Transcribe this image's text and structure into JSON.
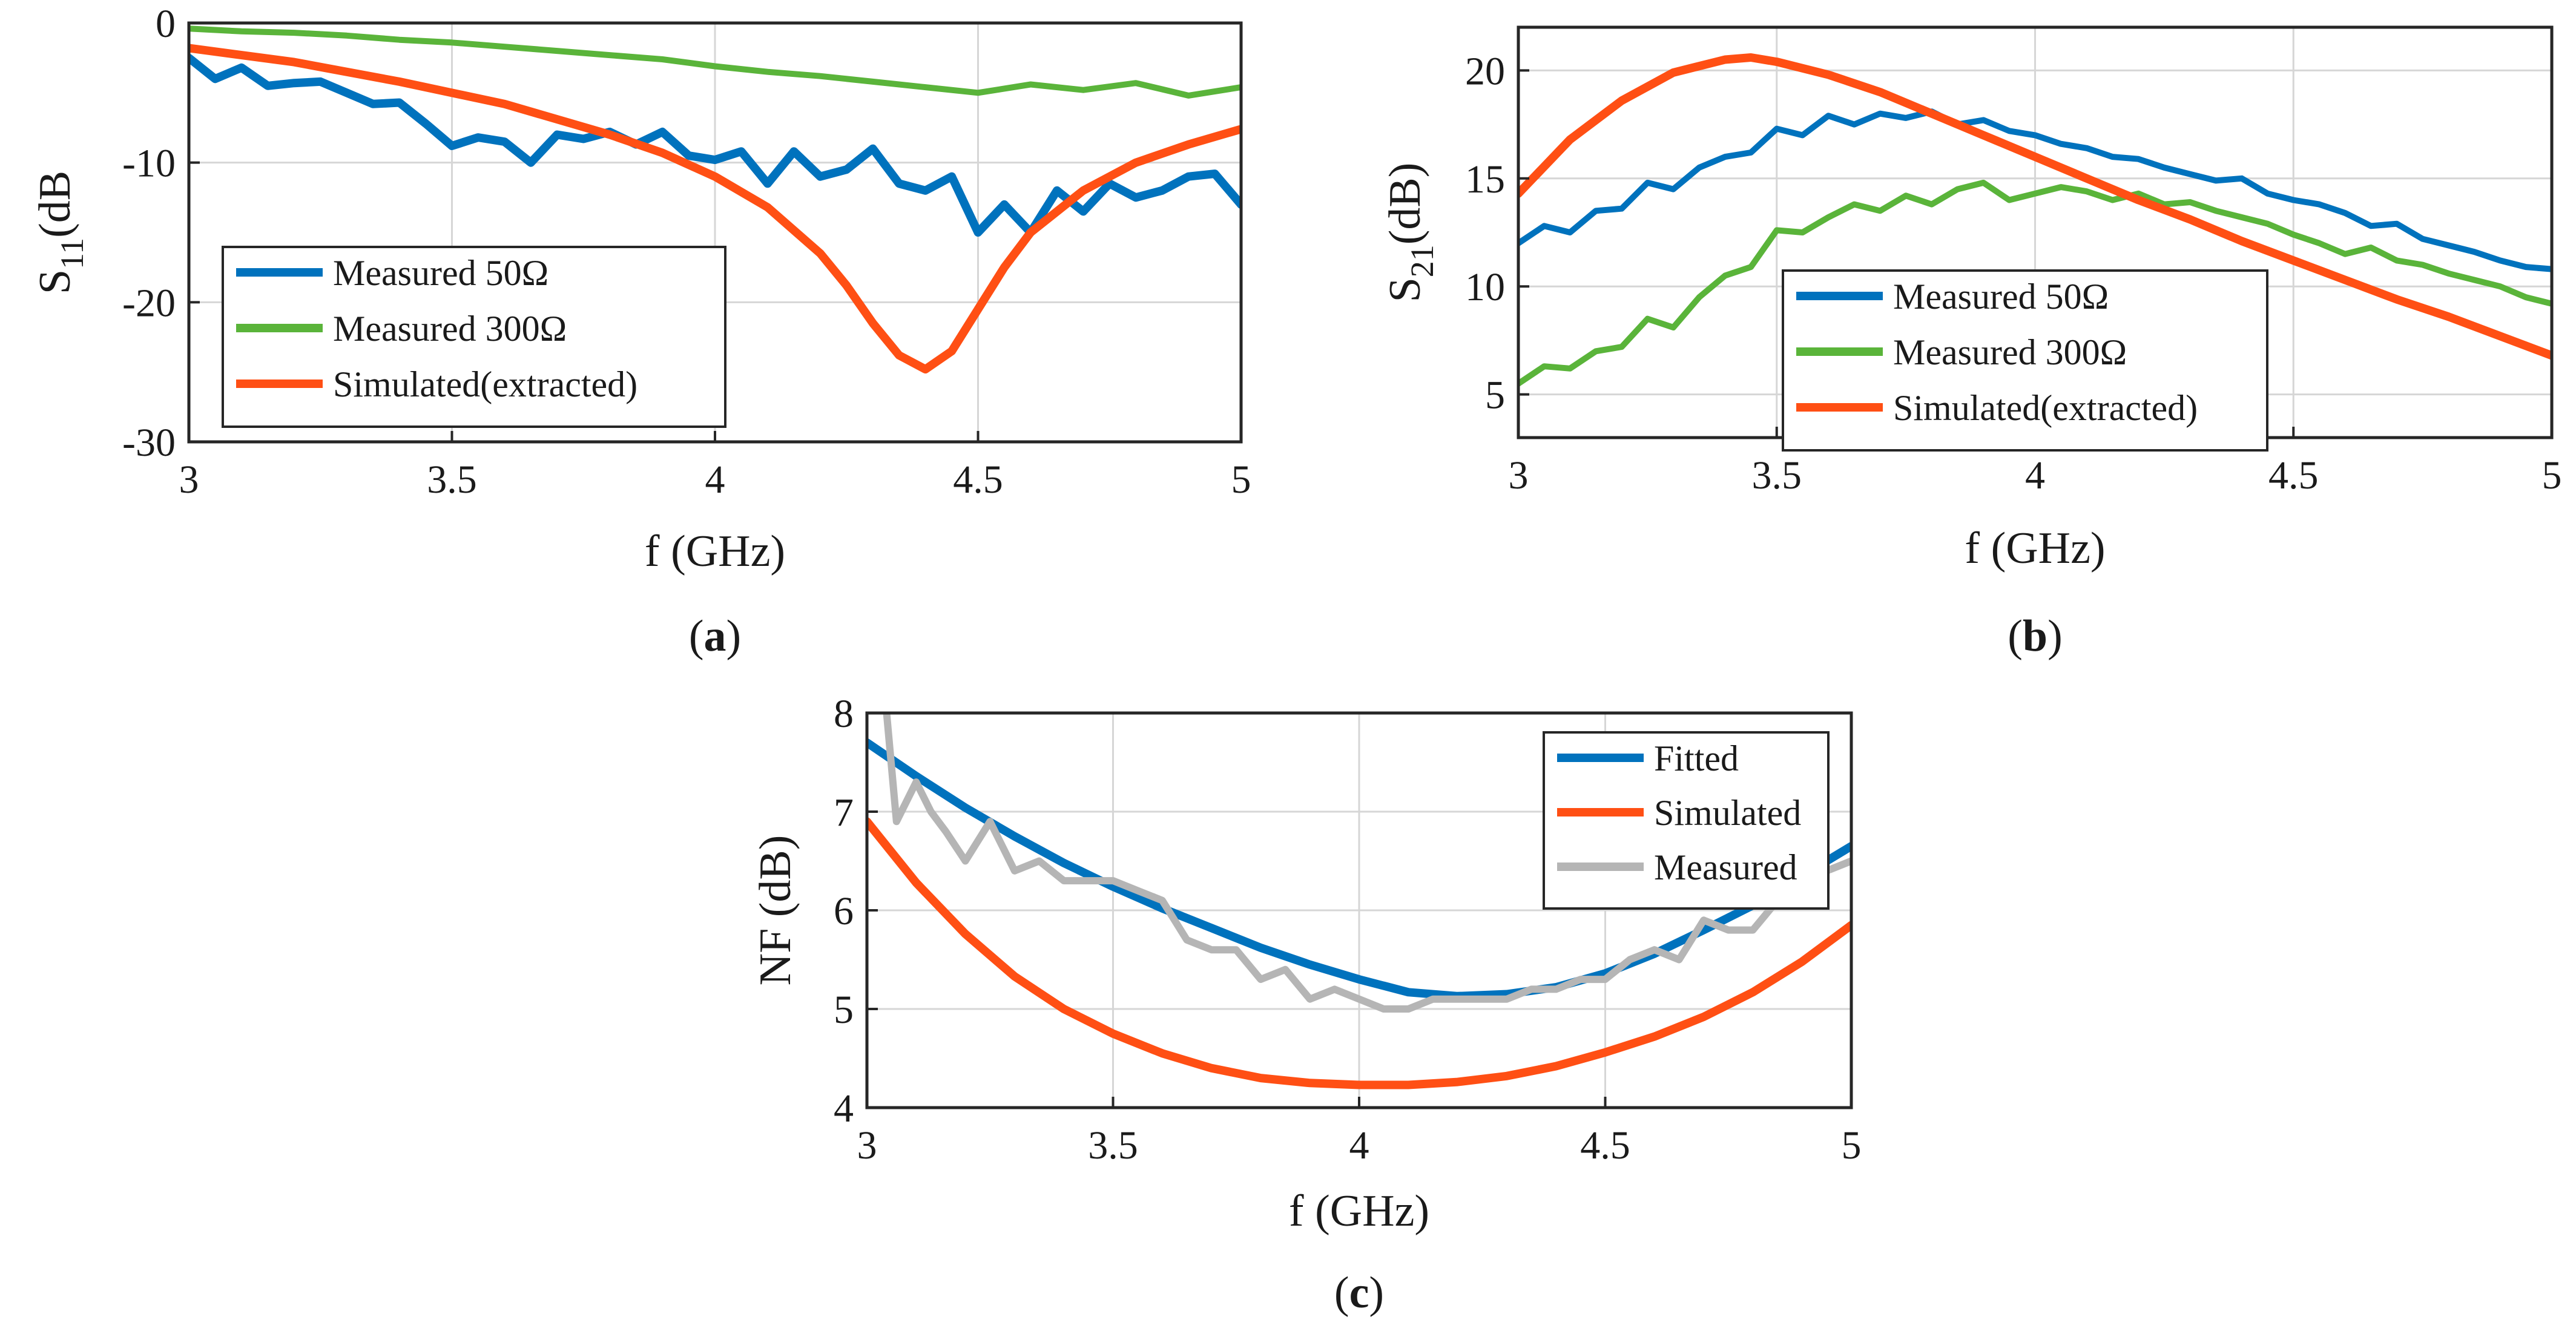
{
  "colors": {
    "measured50": "#0072BD",
    "measured300": "#5AB43A",
    "simulated": "#FF4F14",
    "fitted": "#0072BD",
    "measured": "#B5B5B5",
    "grid": "#d6d6d6"
  },
  "chart_data": [
    {
      "type": "line",
      "caption": {
        "open": "(",
        "letter": "a",
        "close": ")"
      },
      "xlabel": "f (GHz)",
      "ylabel": {
        "main": "S",
        "sub": "11",
        "rest": "(dB"
      },
      "xlim": [
        3,
        5
      ],
      "ylim": [
        -30,
        0
      ],
      "xticks": [
        3,
        3.5,
        4,
        4.5,
        5
      ],
      "xtick_labels": [
        "3",
        "3.5",
        "4",
        "4.5",
        "5"
      ],
      "yticks": [
        -30,
        -20,
        -10,
        0
      ],
      "ytick_labels": [
        "-30",
        "-20",
        "-10",
        "0"
      ],
      "grid": true,
      "legend_position": "bottom-left",
      "series": [
        {
          "name": "Measured 50Ω",
          "color": "#0072BD",
          "width": 14,
          "x": [
            3.0,
            3.05,
            3.1,
            3.15,
            3.2,
            3.25,
            3.3,
            3.35,
            3.4,
            3.45,
            3.5,
            3.55,
            3.6,
            3.65,
            3.7,
            3.75,
            3.8,
            3.85,
            3.9,
            3.95,
            4.0,
            4.05,
            4.1,
            4.15,
            4.2,
            4.25,
            4.3,
            4.35,
            4.4,
            4.45,
            4.5,
            4.55,
            4.6,
            4.65,
            4.7,
            4.75,
            4.8,
            4.85,
            4.9,
            4.95,
            5.0
          ],
          "y": [
            -2.5,
            -4.0,
            -3.2,
            -4.5,
            -4.3,
            -4.2,
            -5.0,
            -5.8,
            -5.7,
            -7.2,
            -8.8,
            -8.2,
            -8.5,
            -10.0,
            -8.0,
            -8.3,
            -7.8,
            -8.7,
            -7.8,
            -9.5,
            -9.8,
            -9.2,
            -11.5,
            -9.2,
            -11.0,
            -10.5,
            -9.0,
            -11.5,
            -12.0,
            -11.0,
            -15.0,
            -13.0,
            -15.0,
            -12.0,
            -13.5,
            -11.5,
            -12.5,
            -12.0,
            -11.0,
            -10.8,
            -13.0
          ]
        },
        {
          "name": "Measured 300Ω",
          "color": "#5AB43A",
          "width": 10,
          "x": [
            3.0,
            3.1,
            3.2,
            3.3,
            3.4,
            3.5,
            3.6,
            3.7,
            3.8,
            3.9,
            4.0,
            4.1,
            4.2,
            4.3,
            4.4,
            4.5,
            4.6,
            4.7,
            4.8,
            4.9,
            5.0
          ],
          "y": [
            -0.4,
            -0.6,
            -0.7,
            -0.9,
            -1.2,
            -1.4,
            -1.7,
            -2.0,
            -2.3,
            -2.6,
            -3.1,
            -3.5,
            -3.8,
            -4.2,
            -4.6,
            -5.0,
            -4.4,
            -4.8,
            -4.3,
            -5.2,
            -4.6
          ]
        },
        {
          "name": "Simulated(extracted)",
          "color": "#FF4F14",
          "width": 14,
          "x": [
            3.0,
            3.2,
            3.4,
            3.6,
            3.8,
            3.9,
            4.0,
            4.1,
            4.2,
            4.25,
            4.3,
            4.35,
            4.4,
            4.45,
            4.5,
            4.55,
            4.6,
            4.7,
            4.8,
            4.9,
            5.0
          ],
          "y": [
            -1.8,
            -2.8,
            -4.2,
            -5.8,
            -8.0,
            -9.3,
            -11.0,
            -13.2,
            -16.5,
            -18.8,
            -21.5,
            -23.8,
            -24.8,
            -23.5,
            -20.5,
            -17.5,
            -15.0,
            -12.0,
            -10.0,
            -8.7,
            -7.6
          ]
        }
      ]
    },
    {
      "type": "line",
      "caption": {
        "open": "(",
        "letter": "b",
        "close": ")"
      },
      "xlabel": "f (GHz)",
      "ylabel": {
        "main": "S",
        "sub": "21",
        "rest": "(dB)"
      },
      "xlim": [
        3,
        5
      ],
      "ylim": [
        3,
        22
      ],
      "xticks": [
        3,
        3.5,
        4,
        4.5,
        5
      ],
      "xtick_labels": [
        "3",
        "3.5",
        "4",
        "4.5",
        "5"
      ],
      "yticks": [
        5,
        10,
        15,
        20
      ],
      "ytick_labels": [
        "5",
        "10",
        "15",
        "20"
      ],
      "grid": true,
      "legend_position": "bottom-center",
      "series": [
        {
          "name": "Measured 50Ω",
          "color": "#0072BD",
          "width": 10,
          "x": [
            3.0,
            3.05,
            3.1,
            3.15,
            3.2,
            3.25,
            3.3,
            3.35,
            3.4,
            3.45,
            3.5,
            3.55,
            3.6,
            3.65,
            3.7,
            3.75,
            3.8,
            3.85,
            3.9,
            3.95,
            4.0,
            4.05,
            4.1,
            4.15,
            4.2,
            4.25,
            4.3,
            4.35,
            4.4,
            4.45,
            4.5,
            4.55,
            4.6,
            4.65,
            4.7,
            4.75,
            4.8,
            4.85,
            4.9,
            4.95,
            5.0
          ],
          "y": [
            12.0,
            12.8,
            12.5,
            13.5,
            13.6,
            14.8,
            14.5,
            15.5,
            16.0,
            16.2,
            17.3,
            17.0,
            17.9,
            17.5,
            18.0,
            17.8,
            18.1,
            17.5,
            17.7,
            17.2,
            17.0,
            16.6,
            16.4,
            16.0,
            15.9,
            15.5,
            15.2,
            14.9,
            15.0,
            14.3,
            14.0,
            13.8,
            13.4,
            12.8,
            12.9,
            12.2,
            11.9,
            11.6,
            11.2,
            10.9,
            10.8
          ]
        },
        {
          "name": "Measured 300Ω",
          "color": "#5AB43A",
          "width": 10,
          "x": [
            3.0,
            3.05,
            3.1,
            3.15,
            3.2,
            3.25,
            3.3,
            3.35,
            3.4,
            3.45,
            3.5,
            3.55,
            3.6,
            3.65,
            3.7,
            3.75,
            3.8,
            3.85,
            3.9,
            3.95,
            4.0,
            4.05,
            4.1,
            4.15,
            4.2,
            4.25,
            4.3,
            4.35,
            4.4,
            4.45,
            4.5,
            4.55,
            4.6,
            4.65,
            4.7,
            4.75,
            4.8,
            4.85,
            4.9,
            4.95,
            5.0
          ],
          "y": [
            5.5,
            6.3,
            6.2,
            7.0,
            7.2,
            8.5,
            8.1,
            9.5,
            10.5,
            10.9,
            12.6,
            12.5,
            13.2,
            13.8,
            13.5,
            14.2,
            13.8,
            14.5,
            14.8,
            14.0,
            14.3,
            14.6,
            14.4,
            14.0,
            14.3,
            13.8,
            13.9,
            13.5,
            13.2,
            12.9,
            12.4,
            12.0,
            11.5,
            11.8,
            11.2,
            11.0,
            10.6,
            10.3,
            10.0,
            9.5,
            9.2
          ]
        },
        {
          "name": "Simulated(extracted)",
          "color": "#FF4F14",
          "width": 14,
          "x": [
            3.0,
            3.1,
            3.2,
            3.3,
            3.4,
            3.45,
            3.5,
            3.6,
            3.7,
            3.8,
            3.9,
            4.0,
            4.1,
            4.2,
            4.3,
            4.4,
            4.5,
            4.6,
            4.7,
            4.8,
            4.9,
            5.0
          ],
          "y": [
            14.3,
            16.8,
            18.6,
            19.9,
            20.5,
            20.6,
            20.4,
            19.8,
            19.0,
            18.0,
            17.0,
            16.0,
            15.0,
            14.0,
            13.1,
            12.1,
            11.2,
            10.3,
            9.4,
            8.6,
            7.7,
            6.8
          ]
        }
      ]
    },
    {
      "type": "line",
      "caption": {
        "open": "(",
        "letter": "c",
        "close": ")"
      },
      "xlabel": "f (GHz)",
      "ylabel": {
        "main": "NF (dB)",
        "sub": "",
        "rest": ""
      },
      "xlim": [
        3,
        5
      ],
      "ylim": [
        4,
        8
      ],
      "xticks": [
        3,
        3.5,
        4,
        4.5,
        5
      ],
      "xtick_labels": [
        "3",
        "3.5",
        "4",
        "4.5",
        "5"
      ],
      "yticks": [
        4,
        5,
        6,
        7,
        8
      ],
      "ytick_labels": [
        "4",
        "5",
        "6",
        "7",
        "8"
      ],
      "grid": true,
      "legend_position": "top-right",
      "series": [
        {
          "name": "Fitted",
          "color": "#0072BD",
          "width": 14,
          "x": [
            3.0,
            3.1,
            3.2,
            3.3,
            3.4,
            3.5,
            3.6,
            3.7,
            3.8,
            3.9,
            4.0,
            4.1,
            4.2,
            4.3,
            4.4,
            4.5,
            4.6,
            4.7,
            4.8,
            4.9,
            5.0
          ],
          "y": [
            7.7,
            7.36,
            7.04,
            6.75,
            6.48,
            6.24,
            6.02,
            5.82,
            5.62,
            5.45,
            5.3,
            5.17,
            5.13,
            5.15,
            5.22,
            5.36,
            5.56,
            5.8,
            6.05,
            6.35,
            6.65
          ]
        },
        {
          "name": "Simulated",
          "color": "#FF4F14",
          "width": 14,
          "x": [
            3.0,
            3.1,
            3.2,
            3.3,
            3.4,
            3.5,
            3.6,
            3.7,
            3.8,
            3.9,
            4.0,
            4.1,
            4.2,
            4.3,
            4.4,
            4.5,
            4.6,
            4.7,
            4.8,
            4.9,
            5.0
          ],
          "y": [
            6.9,
            6.28,
            5.76,
            5.33,
            5.0,
            4.75,
            4.55,
            4.4,
            4.3,
            4.25,
            4.23,
            4.23,
            4.26,
            4.32,
            4.42,
            4.56,
            4.72,
            4.92,
            5.17,
            5.48,
            5.85
          ]
        },
        {
          "name": "Measured",
          "color": "#B5B5B5",
          "width": 12,
          "x": [
            3.04,
            3.06,
            3.1,
            3.13,
            3.16,
            3.2,
            3.25,
            3.3,
            3.35,
            3.4,
            3.45,
            3.5,
            3.55,
            3.6,
            3.65,
            3.7,
            3.75,
            3.8,
            3.85,
            3.9,
            3.95,
            4.0,
            4.05,
            4.1,
            4.15,
            4.2,
            4.25,
            4.3,
            4.35,
            4.4,
            4.45,
            4.5,
            4.55,
            4.6,
            4.65,
            4.7,
            4.75,
            4.8,
            4.85,
            4.9,
            4.95,
            5.0
          ],
          "y": [
            8.0,
            6.9,
            7.3,
            7.0,
            6.8,
            6.5,
            6.9,
            6.4,
            6.5,
            6.3,
            6.3,
            6.3,
            6.2,
            6.1,
            5.7,
            5.6,
            5.6,
            5.3,
            5.4,
            5.1,
            5.2,
            5.1,
            5.0,
            5.0,
            5.1,
            5.1,
            5.1,
            5.1,
            5.2,
            5.2,
            5.3,
            5.3,
            5.5,
            5.6,
            5.5,
            5.9,
            5.8,
            5.8,
            6.1,
            6.3,
            6.4,
            6.5
          ]
        }
      ]
    }
  ]
}
